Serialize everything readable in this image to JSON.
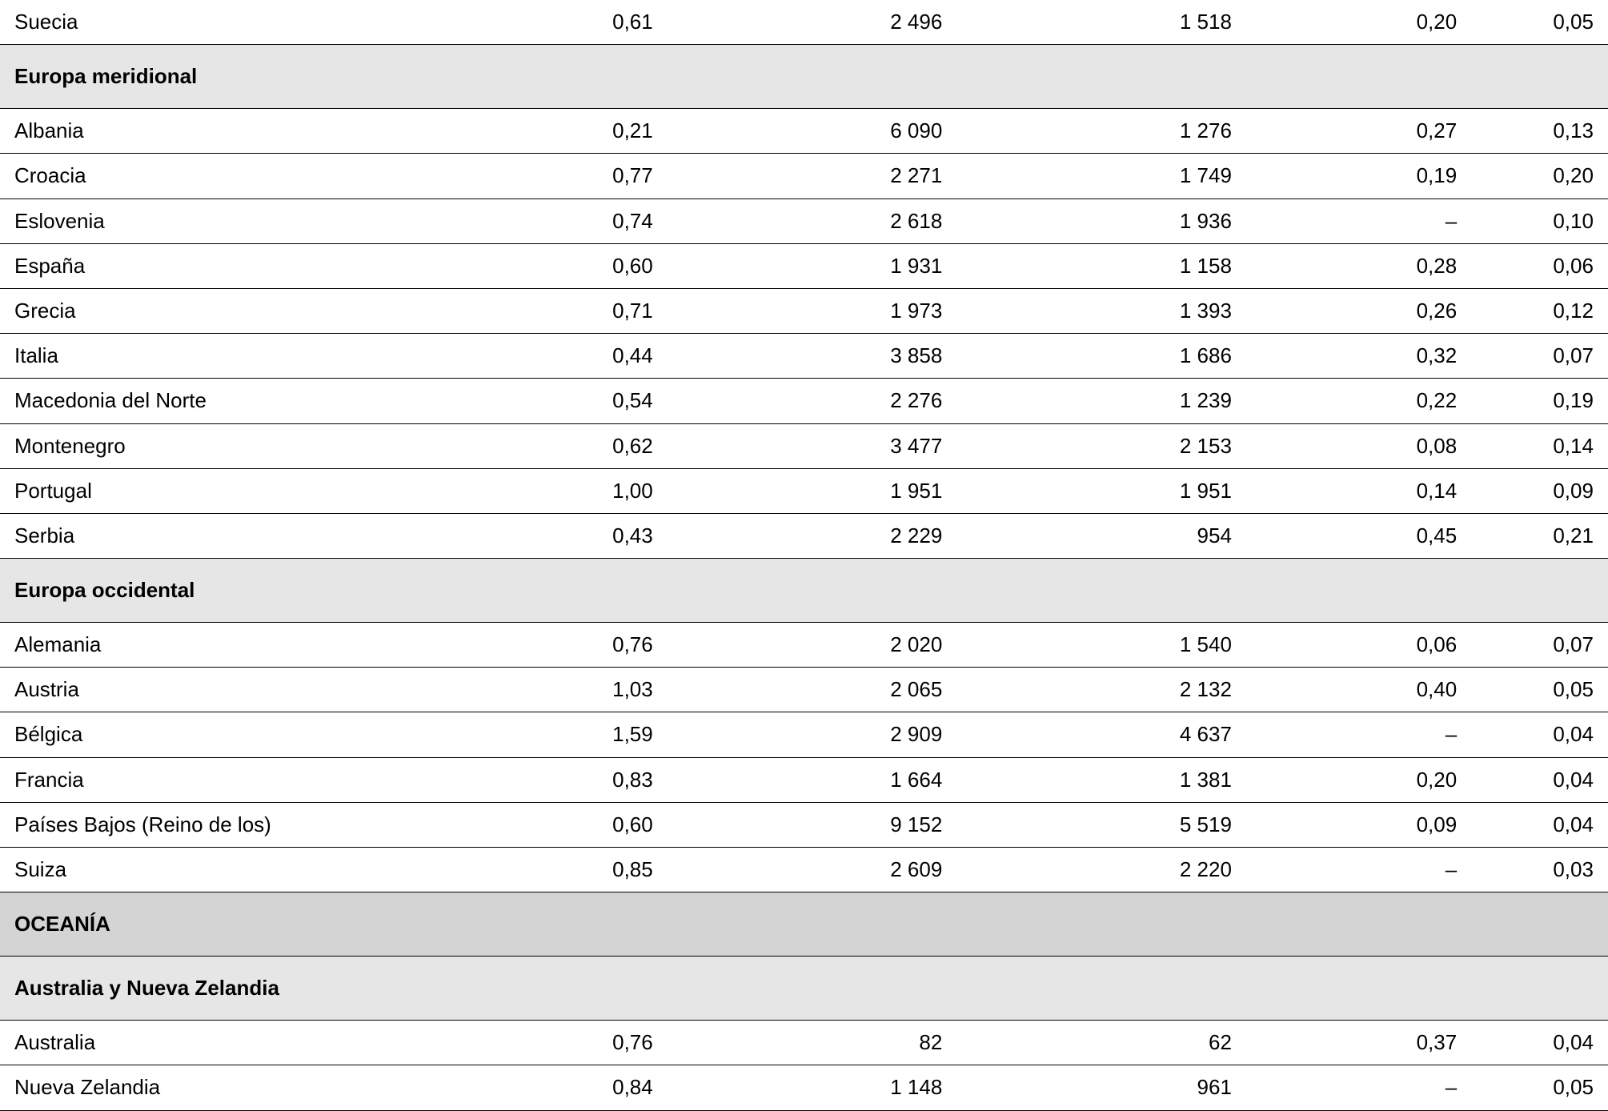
{
  "colors": {
    "background": "#ffffff",
    "text": "#000000",
    "header_bg": "#e6e6e6",
    "header_bg_dark": "#d4d4d4",
    "border": "#000000"
  },
  "typography": {
    "font_family": "Helvetica Neue, Helvetica, Arial, sans-serif",
    "cell_fontsize": 26,
    "header_fontweight": 700
  },
  "layout": {
    "columns_pct": [
      27,
      14.5,
      18,
      18,
      14,
      8.5
    ],
    "row_min_height": 56
  },
  "rows": [
    {
      "type": "data",
      "label": "Suecia",
      "c1": "0,61",
      "c2": "2 496",
      "c3": "1 518",
      "c4": "0,20",
      "c5": "0,05"
    },
    {
      "type": "header",
      "label": "Europa meridional"
    },
    {
      "type": "data",
      "label": "Albania",
      "c1": "0,21",
      "c2": "6 090",
      "c3": "1 276",
      "c4": "0,27",
      "c5": "0,13"
    },
    {
      "type": "data",
      "label": "Croacia",
      "c1": "0,77",
      "c2": "2 271",
      "c3": "1 749",
      "c4": "0,19",
      "c5": "0,20"
    },
    {
      "type": "data",
      "label": "Eslovenia",
      "c1": "0,74",
      "c2": "2 618",
      "c3": "1 936",
      "c4": "–",
      "c5": "0,10"
    },
    {
      "type": "data",
      "label": "España",
      "c1": "0,60",
      "c2": "1 931",
      "c3": "1 158",
      "c4": "0,28",
      "c5": "0,06"
    },
    {
      "type": "data",
      "label": "Grecia",
      "c1": "0,71",
      "c2": "1 973",
      "c3": "1 393",
      "c4": "0,26",
      "c5": "0,12"
    },
    {
      "type": "data",
      "label": "Italia",
      "c1": "0,44",
      "c2": "3 858",
      "c3": "1 686",
      "c4": "0,32",
      "c5": "0,07"
    },
    {
      "type": "data",
      "label": "Macedonia del Norte",
      "c1": "0,54",
      "c2": "2 276",
      "c3": "1 239",
      "c4": "0,22",
      "c5": "0,19"
    },
    {
      "type": "data",
      "label": "Montenegro",
      "c1": "0,62",
      "c2": "3 477",
      "c3": "2 153",
      "c4": "0,08",
      "c5": "0,14"
    },
    {
      "type": "data",
      "label": "Portugal",
      "c1": "1,00",
      "c2": "1 951",
      "c3": "1 951",
      "c4": "0,14",
      "c5": "0,09"
    },
    {
      "type": "data",
      "label": "Serbia",
      "c1": "0,43",
      "c2": "2 229",
      "c3": "954",
      "c4": "0,45",
      "c5": "0,21"
    },
    {
      "type": "header",
      "label": "Europa occidental"
    },
    {
      "type": "data",
      "label": "Alemania",
      "c1": "0,76",
      "c2": "2 020",
      "c3": "1 540",
      "c4": "0,06",
      "c5": "0,07"
    },
    {
      "type": "data",
      "label": "Austria",
      "c1": "1,03",
      "c2": "2 065",
      "c3": "2 132",
      "c4": "0,40",
      "c5": "0,05"
    },
    {
      "type": "data",
      "label": "Bélgica",
      "c1": "1,59",
      "c2": "2 909",
      "c3": "4 637",
      "c4": "–",
      "c5": "0,04"
    },
    {
      "type": "data",
      "label": "Francia",
      "c1": "0,83",
      "c2": "1 664",
      "c3": "1 381",
      "c4": "0,20",
      "c5": "0,04"
    },
    {
      "type": "data",
      "label": "Países Bajos (Reino de los)",
      "c1": "0,60",
      "c2": "9 152",
      "c3": "5 519",
      "c4": "0,09",
      "c5": "0,04"
    },
    {
      "type": "data",
      "label": "Suiza",
      "c1": "0,85",
      "c2": "2 609",
      "c3": "2 220",
      "c4": "–",
      "c5": "0,03"
    },
    {
      "type": "header-dark",
      "label": "OCEANÍA"
    },
    {
      "type": "header",
      "label": "Australia y Nueva Zelandia"
    },
    {
      "type": "data",
      "label": "Australia",
      "c1": "0,76",
      "c2": "82",
      "c3": "62",
      "c4": "0,37",
      "c5": "0,04"
    },
    {
      "type": "data",
      "label": "Nueva Zelandia",
      "c1": "0,84",
      "c2": "1 148",
      "c3": "961",
      "c4": "–",
      "c5": "0,05"
    }
  ]
}
